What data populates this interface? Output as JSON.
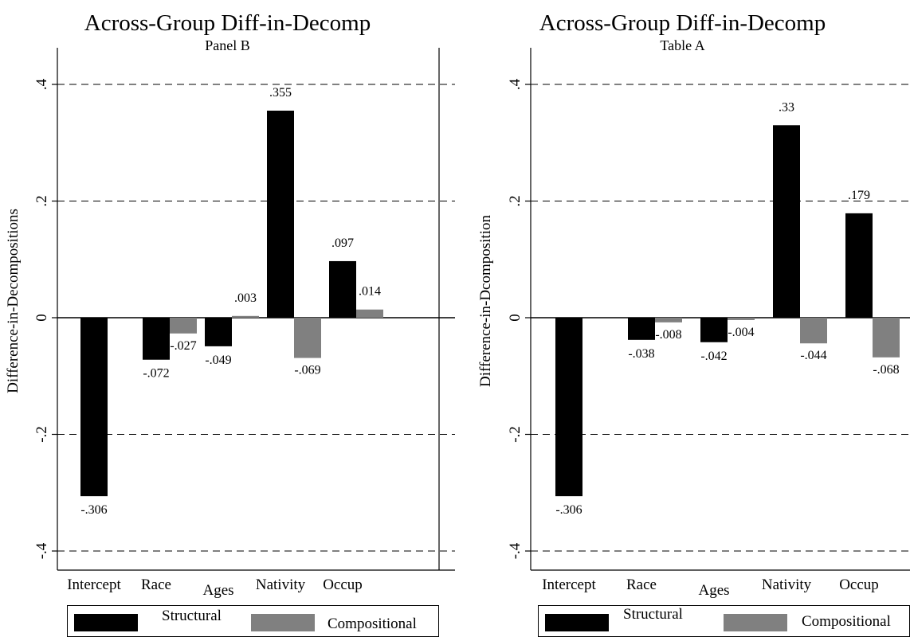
{
  "chart_data": [
    {
      "type": "bar",
      "title": "Across-Group Diff-in-Decomp",
      "subtitle": "Panel B",
      "ylabel": "Difference-in-Decompositions",
      "xlabel": "",
      "ylim": [
        -0.42,
        0.42
      ],
      "yticks": [
        -0.4,
        -0.2,
        0,
        0.2,
        0.4
      ],
      "ytick_labels": [
        "-.4",
        "-.2",
        "0",
        ".2",
        ".4"
      ],
      "grid": "dashed horizontal at y ticks",
      "categories": [
        "Intercept",
        "Race",
        "Ages",
        "Nativity",
        "Occup"
      ],
      "series": [
        {
          "name": "Structural",
          "color": "#000000",
          "values": [
            -0.306,
            -0.072,
            -0.049,
            0.355,
            0.097
          ],
          "labels": [
            "-.306",
            "-.072",
            "-.049",
            ".355",
            ".097"
          ]
        },
        {
          "name": "Compositional",
          "color": "#808080",
          "values": [
            null,
            -0.027,
            0.003,
            -0.069,
            0.014
          ],
          "labels": [
            "",
            "-.027",
            ".003",
            "-.069",
            ".014"
          ]
        }
      ],
      "legend_position": "bottom"
    },
    {
      "type": "bar",
      "title": "Across-Group Diff-in-Decomp",
      "subtitle": "Table A",
      "ylabel": "Difference-in-Dcomposition",
      "xlabel": "",
      "ylim": [
        -0.42,
        0.42
      ],
      "yticks": [
        -0.4,
        -0.2,
        0,
        0.2,
        0.4
      ],
      "ytick_labels": [
        "-.4",
        "-.2",
        "0",
        ".2",
        ".4"
      ],
      "grid": "dashed horizontal at y ticks",
      "categories": [
        "Intercept",
        "Race",
        "Ages",
        "Nativity",
        "Occup"
      ],
      "series": [
        {
          "name": "Structural",
          "color": "#000000",
          "values": [
            -0.306,
            -0.038,
            -0.042,
            0.33,
            0.179
          ],
          "labels": [
            "-.306",
            "-.038",
            "-.042",
            ".33",
            ".179"
          ]
        },
        {
          "name": "Compositional",
          "color": "#808080",
          "values": [
            null,
            -0.008,
            -0.004,
            -0.044,
            -0.068
          ],
          "labels": [
            "",
            "-.008",
            "-.004",
            "-.044",
            "-.068"
          ]
        }
      ],
      "legend_position": "bottom"
    }
  ]
}
